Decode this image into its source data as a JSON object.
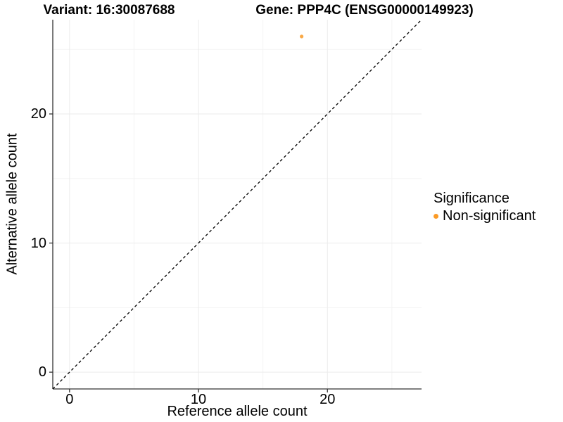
{
  "titles": {
    "left": "Variant: 16:30087688",
    "right": "Gene: PPP4C (ENSG00000149923)"
  },
  "chart_data": {
    "type": "scatter",
    "title_left": "Variant: 16:30087688",
    "title_right": "Gene: PPP4C (ENSG00000149923)",
    "xlabel": "Reference allele count",
    "ylabel": "Alternative allele count",
    "xlim": [
      -1.3,
      27.3
    ],
    "ylim": [
      -1.3,
      27.3
    ],
    "x_major_ticks": [
      0,
      10,
      20
    ],
    "y_major_ticks": [
      0,
      10,
      20
    ],
    "x_minor_gridlines": [
      5,
      15,
      25
    ],
    "y_minor_gridlines": [
      5,
      15,
      25
    ],
    "grid": true,
    "points": [
      {
        "x": 18,
        "y": 26,
        "series": "Non-significant",
        "color": "#F9A947",
        "radius": 2.6
      }
    ],
    "identity_line": {
      "style": "dashed",
      "from": [
        -1.3,
        -1.3
      ],
      "to": [
        27.3,
        27.3
      ],
      "color": "#000000"
    },
    "legend": {
      "title": "Significance",
      "position": "right",
      "items": [
        {
          "label": "Non-significant",
          "color": "#FB9A25"
        }
      ]
    },
    "colors": {
      "major_grid": "#EBEBEB",
      "minor_grid": "#F4F4F4",
      "axis_line": "#333333",
      "tick_mark": "#333333"
    }
  }
}
